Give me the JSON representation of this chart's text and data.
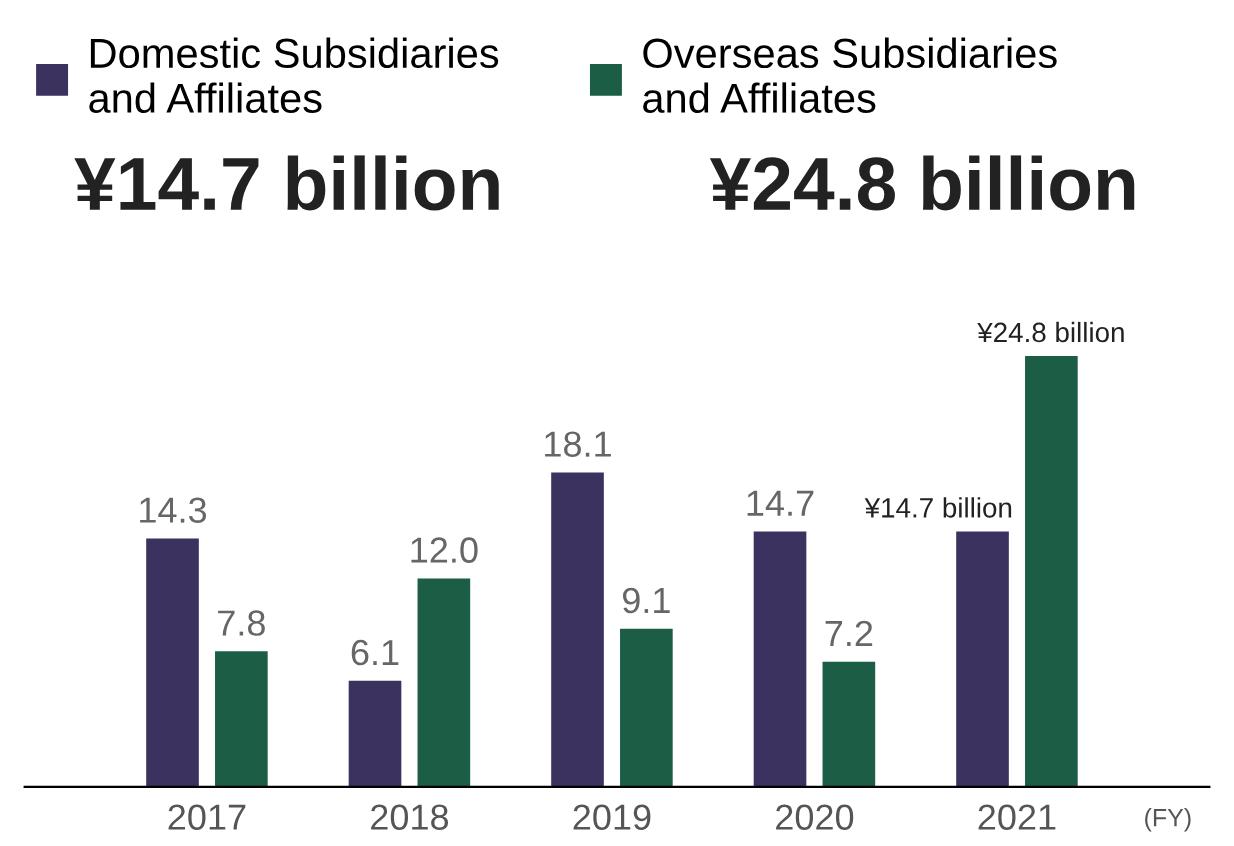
{
  "chart_data": {
    "type": "bar",
    "categories": [
      "2017",
      "2018",
      "2019",
      "2020",
      "2021"
    ],
    "xlabel": "(FY)",
    "series": [
      {
        "name": "Domestic Subsidiaries\nand Affiliates",
        "color": "#3c3260",
        "values": [
          14.3,
          6.1,
          18.1,
          14.7,
          14.7
        ],
        "value_labels": [
          "14.3",
          "6.1",
          "18.1",
          "14.7",
          "¥14.7 billion"
        ]
      },
      {
        "name": "Overseas Subsidiaries\nand Affiliates",
        "color": "#1b5e45",
        "values": [
          7.8,
          12.0,
          9.1,
          7.2,
          24.8
        ],
        "value_labels": [
          "7.8",
          "12.0",
          "9.1",
          "7.2",
          "¥24.8 billion"
        ]
      }
    ],
    "annotations": [
      "¥14.7 billion",
      "¥24.8 billion"
    ],
    "legend": "top",
    "grid": false
  }
}
